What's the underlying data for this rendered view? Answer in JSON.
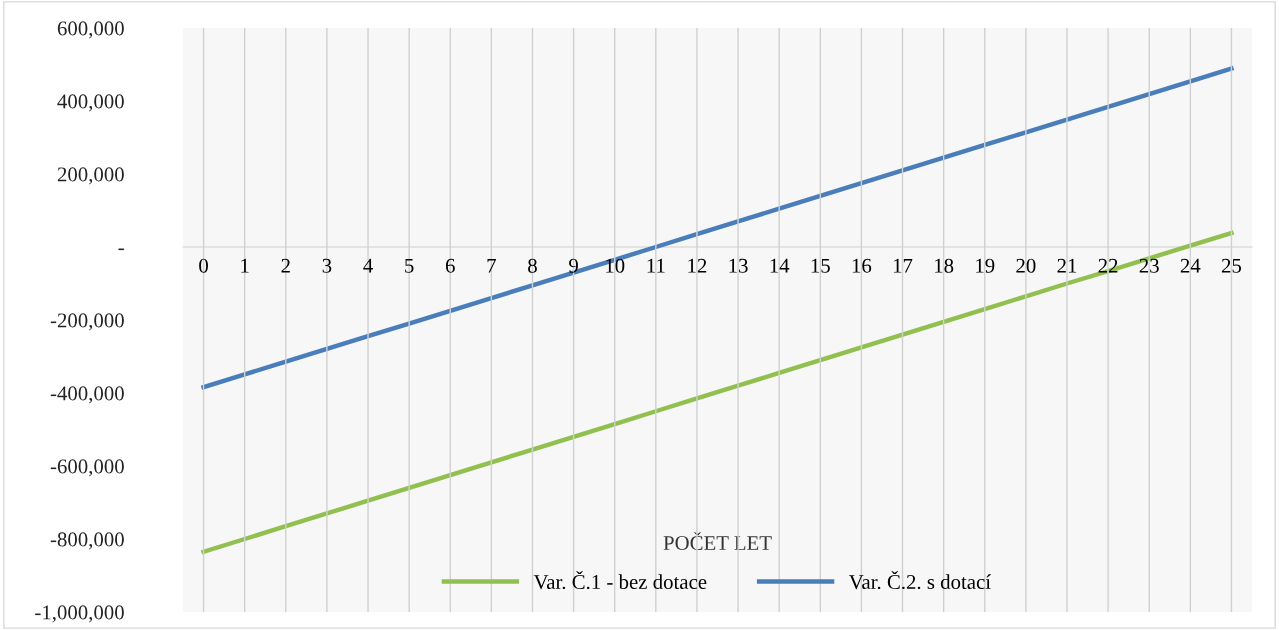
{
  "chart_data": {
    "type": "line",
    "xlabel": "POČET LET",
    "categories": [
      "0",
      "1",
      "2",
      "3",
      "4",
      "5",
      "6",
      "7",
      "8",
      "9",
      "10",
      "11",
      "12",
      "13",
      "14",
      "15",
      "16",
      "17",
      "18",
      "19",
      "20",
      "21",
      "22",
      "23",
      "24",
      "25"
    ],
    "series": [
      {
        "name": "Var. Č.1 - bez dotace",
        "color": "#92c050",
        "values": [
          -835000,
          -800000,
          -765000,
          -730000,
          -695000,
          -660000,
          -625000,
          -590000,
          -555000,
          -520000,
          -485000,
          -450000,
          -415000,
          -380000,
          -345000,
          -310000,
          -275000,
          -240000,
          -205000,
          -170000,
          -135000,
          -100000,
          -66000,
          -31000,
          4000,
          38000
        ]
      },
      {
        "name": "Var. Č.2. s dotací",
        "color": "#4a7ebb",
        "values": [
          -384000,
          -349000,
          -314000,
          -279000,
          -244000,
          -210000,
          -175000,
          -140000,
          -105000,
          -70000,
          -35000,
          0,
          35000,
          70000,
          105000,
          140000,
          175000,
          210000,
          245000,
          280000,
          314000,
          349000,
          384000,
          419000,
          454000,
          489000
        ]
      }
    ],
    "ylim": [
      -1000000,
      600000
    ],
    "yticks": [
      {
        "value": -1000000,
        "label": "-1,000,000"
      },
      {
        "value": -800000,
        "label": "-800,000"
      },
      {
        "value": -600000,
        "label": "-600,000"
      },
      {
        "value": -400000,
        "label": "-400,000"
      },
      {
        "value": -200000,
        "label": "-200,000"
      },
      {
        "value": 0,
        "label": "-"
      },
      {
        "value": 200000,
        "label": "200,000"
      },
      {
        "value": 400000,
        "label": "400,000"
      },
      {
        "value": 600000,
        "label": "600,000"
      }
    ],
    "grid": "x",
    "legend": "bottom",
    "marker": "none",
    "line_style": "solid"
  }
}
